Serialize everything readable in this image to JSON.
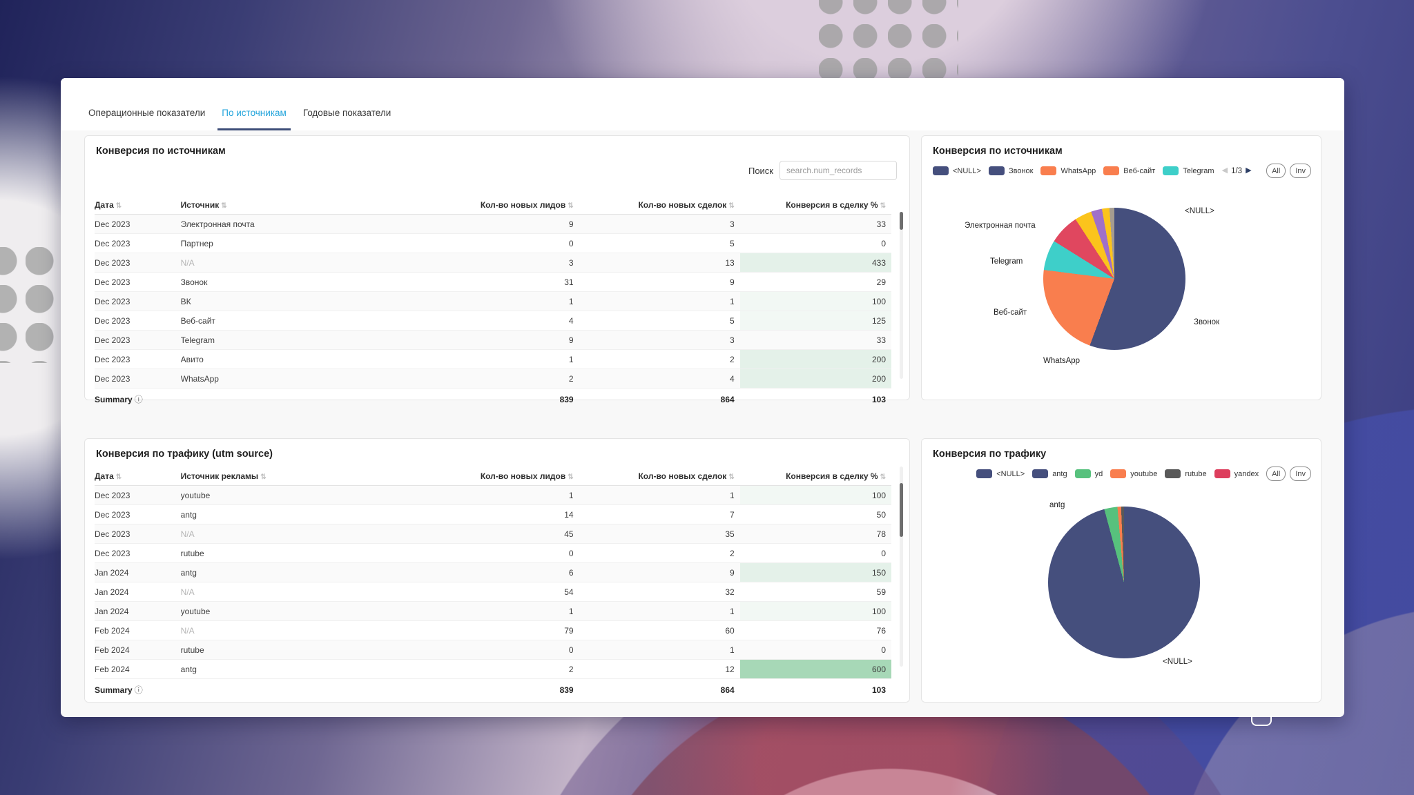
{
  "tabs": [
    {
      "label": "Операционные показатели",
      "active": false
    },
    {
      "label": "По источникам",
      "active": true
    },
    {
      "label": "Годовые показатели",
      "active": false
    }
  ],
  "accent_colors": {
    "active_tab": "#23a5dc",
    "tab_underline": "#3d4d78",
    "green_strong": "#a7d8b7",
    "green_light": "#e4f1e9"
  },
  "cards": {
    "sources_table": {
      "title": "Конверсия по источникам",
      "search_label": "Поиск",
      "search_placeholder": "search.num_records",
      "columns": [
        "Дата",
        "Источник",
        "Кол-во новых лидов",
        "Кол-во новых сделок",
        "Конверсия в сделку %"
      ],
      "rows": [
        {
          "date": "Dec 2023",
          "source": "Электронная почта",
          "leads": "9",
          "deals": "3",
          "conv": "33",
          "tint": "none"
        },
        {
          "date": "Dec 2023",
          "source": "Партнер",
          "leads": "0",
          "deals": "5",
          "conv": "0",
          "tint": "none"
        },
        {
          "date": "Dec 2023",
          "source": "N/A",
          "leads": "3",
          "deals": "13",
          "conv": "433",
          "tint": "light"
        },
        {
          "date": "Dec 2023",
          "source": "Звонок",
          "leads": "31",
          "deals": "9",
          "conv": "29",
          "tint": "none"
        },
        {
          "date": "Dec 2023",
          "source": "ВК",
          "leads": "1",
          "deals": "1",
          "conv": "100",
          "tint": "xlight"
        },
        {
          "date": "Dec 2023",
          "source": "Веб-сайт",
          "leads": "4",
          "deals": "5",
          "conv": "125",
          "tint": "xlight"
        },
        {
          "date": "Dec 2023",
          "source": "Telegram",
          "leads": "9",
          "deals": "3",
          "conv": "33",
          "tint": "none"
        },
        {
          "date": "Dec 2023",
          "source": "Авито",
          "leads": "1",
          "deals": "2",
          "conv": "200",
          "tint": "light"
        },
        {
          "date": "Dec 2023",
          "source": "WhatsApp",
          "leads": "2",
          "deals": "4",
          "conv": "200",
          "tint": "light"
        }
      ],
      "summary": {
        "label": "Summary",
        "leads": "839",
        "deals": "864",
        "conv": "103"
      }
    },
    "traffic_table": {
      "title": "Конверсия по трафику (utm source)",
      "columns": [
        "Дата",
        "Источник рекламы",
        "Кол-во новых лидов",
        "Кол-во новых сделок",
        "Конверсия в сделку %"
      ],
      "rows": [
        {
          "date": "Dec 2023",
          "source": "youtube",
          "leads": "1",
          "deals": "1",
          "conv": "100",
          "tint": "xlight"
        },
        {
          "date": "Dec 2023",
          "source": "antg",
          "leads": "14",
          "deals": "7",
          "conv": "50",
          "tint": "none"
        },
        {
          "date": "Dec 2023",
          "source": "N/A",
          "leads": "45",
          "deals": "35",
          "conv": "78",
          "tint": "none"
        },
        {
          "date": "Dec 2023",
          "source": "rutube",
          "leads": "0",
          "deals": "2",
          "conv": "0",
          "tint": "none"
        },
        {
          "date": "Jan 2024",
          "source": "antg",
          "leads": "6",
          "deals": "9",
          "conv": "150",
          "tint": "light"
        },
        {
          "date": "Jan 2024",
          "source": "N/A",
          "leads": "54",
          "deals": "32",
          "conv": "59",
          "tint": "none"
        },
        {
          "date": "Jan 2024",
          "source": "youtube",
          "leads": "1",
          "deals": "1",
          "conv": "100",
          "tint": "xlight"
        },
        {
          "date": "Feb 2024",
          "source": "N/A",
          "leads": "79",
          "deals": "60",
          "conv": "76",
          "tint": "none"
        },
        {
          "date": "Feb 2024",
          "source": "rutube",
          "leads": "0",
          "deals": "1",
          "conv": "0",
          "tint": "none"
        },
        {
          "date": "Feb 2024",
          "source": "antg",
          "leads": "2",
          "deals": "12",
          "conv": "600",
          "tint": "strong"
        }
      ],
      "summary": {
        "label": "Summary",
        "leads": "839",
        "deals": "864",
        "conv": "103"
      }
    },
    "sources_pie": {
      "title": "Конверсия по источникам",
      "legend": [
        {
          "name": "<NULL>",
          "color": "#454f7d"
        },
        {
          "name": "Звонок",
          "color": "#454f7d"
        },
        {
          "name": "WhatsApp",
          "color": "#f97e4e"
        },
        {
          "name": "Веб-сайт",
          "color": "#f97e4e"
        },
        {
          "name": "Telegram",
          "color": "#3ecfc9"
        }
      ],
      "pagination": "1/3",
      "btn_all": "All",
      "btn_inv": "Inv",
      "point_labels": [
        "<NULL>",
        "Звонок",
        "WhatsApp",
        "Веб-сайт",
        "Telegram",
        "Электронная почта"
      ]
    },
    "traffic_pie": {
      "title": "Конверсия по трафику",
      "legend": [
        {
          "name": "<NULL>",
          "color": "#454f7d"
        },
        {
          "name": "antg",
          "color": "#454f7d"
        },
        {
          "name": "yd",
          "color": "#57c17d"
        },
        {
          "name": "youtube",
          "color": "#f97e4e"
        },
        {
          "name": "rutube",
          "color": "#595959"
        },
        {
          "name": "yandex",
          "color": "#dd3e5d"
        }
      ],
      "btn_all": "All",
      "btn_inv": "Inv",
      "point_labels": [
        "antg",
        "<NULL>"
      ]
    }
  },
  "chart_data": [
    {
      "type": "pie",
      "title": "Конверсия по источникам",
      "legend_position": "top",
      "slices": [
        {
          "label": "<NULL>",
          "color": "#454f7d",
          "pct": 25.0
        },
        {
          "label": "Звонок",
          "color": "#454f7d",
          "pct": 30.6
        },
        {
          "label": "WhatsApp",
          "color": "#f97e4e",
          "pct": 13.0
        },
        {
          "label": "Веб-сайт",
          "color": "#f97e4e",
          "pct": 8.4
        },
        {
          "label": "Telegram",
          "color": "#3ecfc9",
          "pct": 6.9
        },
        {
          "label": "Электронная почта",
          "color": "#e0475f",
          "pct": 6.9
        },
        {
          "label": "",
          "color": "#fbc41c",
          "pct": 3.9
        },
        {
          "label": "",
          "color": "#a070c8",
          "pct": 2.5
        },
        {
          "label": "",
          "color": "#fbc41c",
          "pct": 1.7
        },
        {
          "label": "",
          "color": "#a59c90",
          "pct": 1.1
        }
      ]
    },
    {
      "type": "pie",
      "title": "Конверсия по трафику",
      "legend_position": "top",
      "slices": [
        {
          "label": "<NULL>",
          "color": "#454f7d",
          "pct": 88.0
        },
        {
          "label": "antg",
          "color": "#454f7d",
          "pct": 7.8
        },
        {
          "label": "yd",
          "color": "#57c17d",
          "pct": 2.8
        },
        {
          "label": "youtube",
          "color": "#f97e4e",
          "pct": 0.8
        },
        {
          "label": "rutube",
          "color": "#595959",
          "pct": 0.6
        }
      ]
    }
  ]
}
